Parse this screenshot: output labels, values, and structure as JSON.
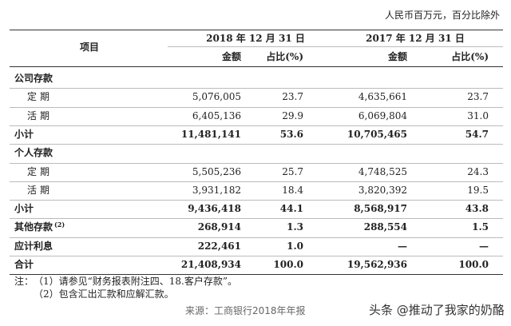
{
  "unit_note": "人民币百万元，百分比除外",
  "table": {
    "header": {
      "item": "项目",
      "periods": [
        "2018 年 12 月 31 日",
        "2017 年 12 月 31 日"
      ],
      "columns": [
        "金额",
        "占比(%)",
        "金额",
        "占比(%)"
      ]
    },
    "rows": [
      {
        "label": "公司存款",
        "bold": true,
        "cells": []
      },
      {
        "label": "定期",
        "indent": true,
        "cells": [
          "5,076,005",
          "23.7",
          "4,635,661",
          "23.7"
        ]
      },
      {
        "label": "活期",
        "indent": true,
        "cells": [
          "6,405,136",
          "29.9",
          "6,069,804",
          "31.0"
        ]
      },
      {
        "label": "小计",
        "bold": true,
        "cells": [
          "11,481,141",
          "53.6",
          "10,705,465",
          "54.7"
        ]
      },
      {
        "label": "个人存款",
        "bold": true,
        "cells": []
      },
      {
        "label": "定期",
        "indent": true,
        "cells": [
          "5,505,236",
          "25.7",
          "4,748,525",
          "24.3"
        ]
      },
      {
        "label": "活期",
        "indent": true,
        "cells": [
          "3,931,182",
          "18.4",
          "3,820,392",
          "19.5"
        ]
      },
      {
        "label": "小计",
        "bold": true,
        "cells": [
          "9,436,418",
          "44.1",
          "8,568,917",
          "43.8"
        ]
      },
      {
        "label": "其他存款",
        "note": "(2)",
        "bold": true,
        "cells": [
          "268,914",
          "1.3",
          "288,554",
          "1.5"
        ]
      },
      {
        "label": "应计利息",
        "bold": true,
        "cells": [
          "222,461",
          "1.0",
          "—",
          "—"
        ]
      },
      {
        "label": "合计",
        "bold": true,
        "cells": [
          "21,408,934",
          "100.0",
          "19,562,936",
          "100.0"
        ]
      }
    ]
  },
  "notes": {
    "prefix": "注：",
    "items": [
      "（1）请参见“财务报表附注四、18.客户存款”。",
      "（2）包含汇出汇款和应解汇款。"
    ]
  },
  "source": "来源：工商银行2018年年报",
  "watermark": "头条 @推动了我家的奶酪"
}
